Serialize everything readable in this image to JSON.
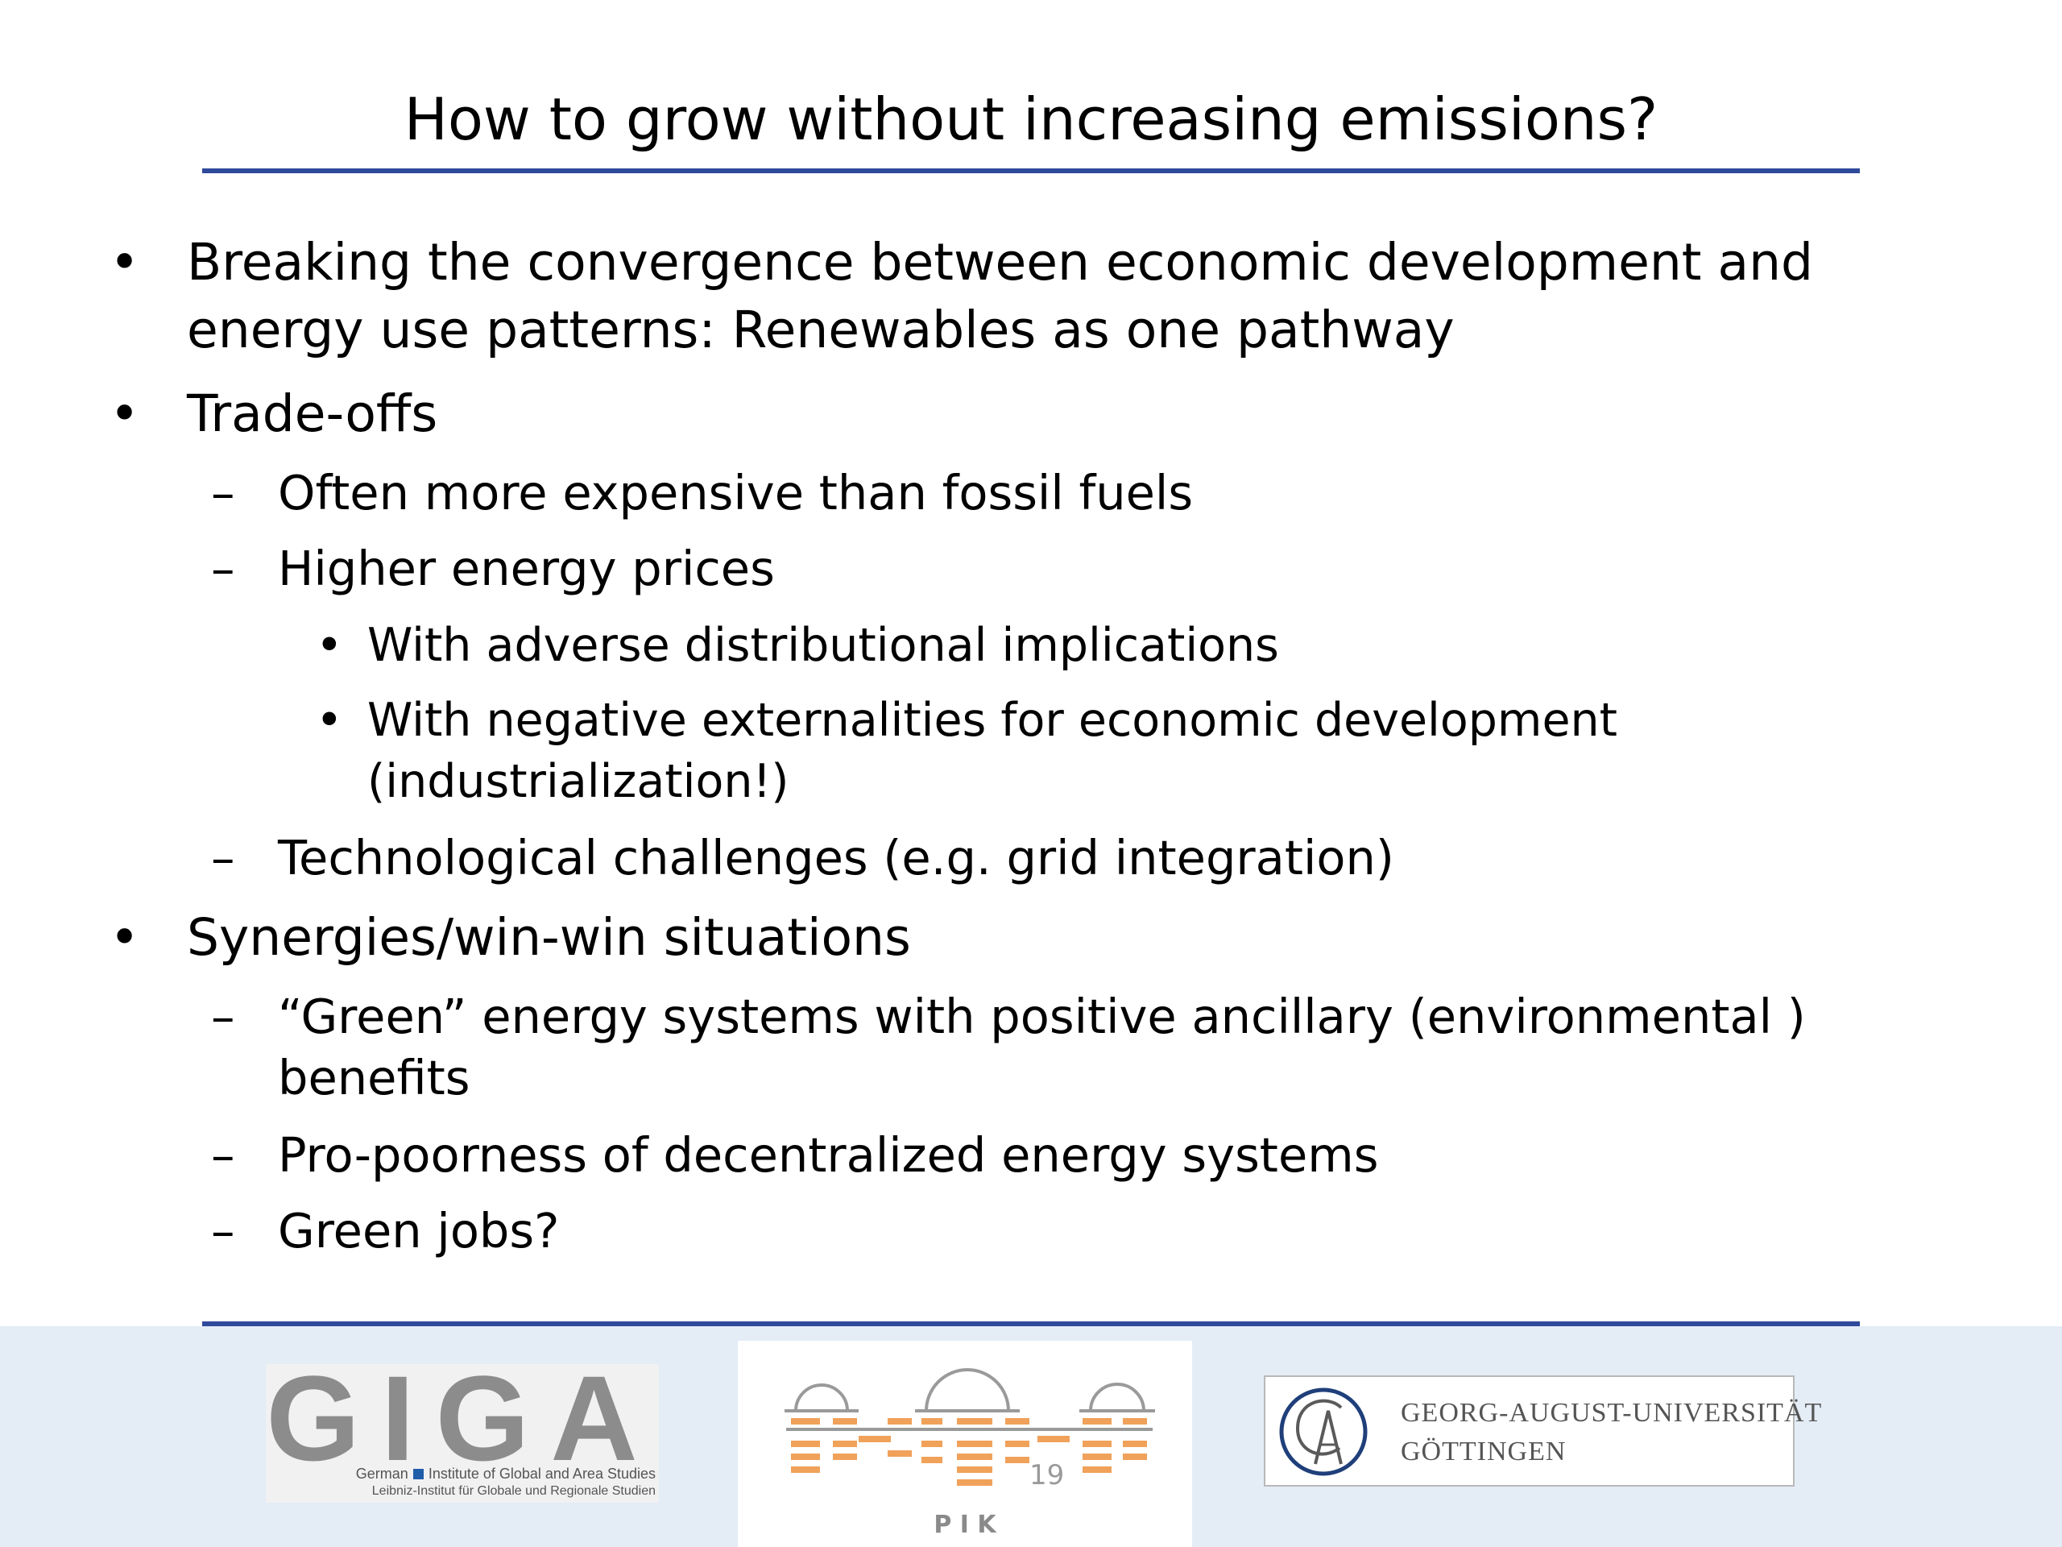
{
  "title": "How to grow without increasing emissions?",
  "content": {
    "b1": {
      "marker": "•",
      "line1": "Breaking the convergence between economic development and",
      "line2": "energy use patterns: Renewables as one pathway"
    },
    "b2": {
      "marker": "•",
      "text": "Trade-offs",
      "sub1": {
        "marker": "–",
        "text": "Often more expensive than fossil fuels"
      },
      "sub2": {
        "marker": "–",
        "text": "Higher energy prices",
        "subsub1": {
          "marker": "•",
          "text": "With adverse distributional implications"
        },
        "subsub2": {
          "marker": "•",
          "line1": "With negative externalities for economic development",
          "line2": "(industrialization!)"
        }
      },
      "sub3": {
        "marker": "–",
        "text": "Technological challenges (e.g. grid integration)"
      }
    },
    "b3": {
      "marker": "•",
      "text": "Synergies/win-win situations",
      "sub1": {
        "marker": "–",
        "line1": "“Green” energy systems with positive ancillary (environmental )",
        "line2": "benefits"
      },
      "sub2": {
        "marker": "–",
        "text": "Pro-poorness of decentralized energy systems"
      },
      "sub3": {
        "marker": "–",
        "text": "Green jobs?"
      }
    }
  },
  "footer": {
    "page_number": "19",
    "giga": {
      "letters": "GIGA",
      "line1_a": "German",
      "line1_b": "Institute of Global and Area Studies",
      "line2": "Leibniz-Institut für Globale und Regionale Studien"
    },
    "pik": {
      "letters": "P I K"
    },
    "goettingen": {
      "line1": "GEORG-AUGUST-UNIVERSITÄT",
      "line2": "GÖTTINGEN"
    }
  },
  "colors": {
    "rule": "#2f4a9a",
    "footer_bg": "#e4ecf6",
    "pik_orange": "#f0a15a",
    "pik_gray": "#9a9a9a",
    "giga_gray": "#8c8c8c",
    "giga_blue": "#1f5ea8"
  }
}
